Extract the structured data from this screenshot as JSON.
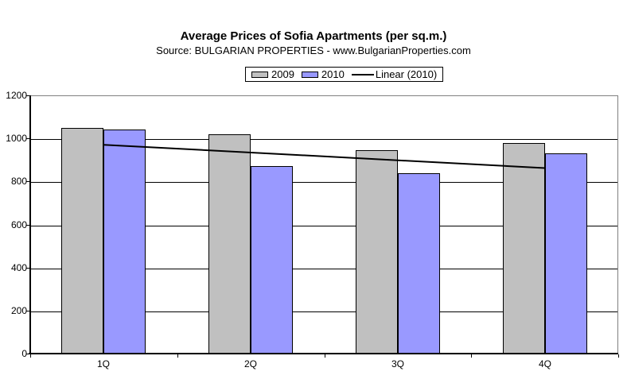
{
  "title": "Average Prices of Sofia Apartments (per sq.m.)",
  "subtitle": "Source: BULGARIAN PROPERTIES - www.BulgarianProperties.com",
  "legend": {
    "items": [
      {
        "label": "2009",
        "swatch_color": "#C0C0C0",
        "kind": "box"
      },
      {
        "label": "2010",
        "swatch_color": "#9999FF",
        "kind": "box"
      },
      {
        "label": "Linear (2010)",
        "swatch_color": "#000000",
        "kind": "line"
      }
    ]
  },
  "colors": {
    "series_2009": "#C0C0C0",
    "series_2010": "#9999FF",
    "trendline": "#000000",
    "gridline": "#000000",
    "plot_border": "#808080",
    "axis": "#000000",
    "background": "#FFFFFF"
  },
  "chart_data": {
    "type": "bar",
    "title": "Average Prices of Sofia Apartments (per sq.m.)",
    "subtitle": "Source: BULGARIAN PROPERTIES - www.BulgarianProperties.com",
    "categories": [
      "1Q",
      "2Q",
      "3Q",
      "4Q"
    ],
    "series": [
      {
        "name": "2009",
        "color": "#C0C0C0",
        "values": [
          1050,
          1020,
          945,
          980
        ]
      },
      {
        "name": "2010",
        "color": "#9999FF",
        "values": [
          1040,
          870,
          840,
          930
        ]
      }
    ],
    "trendline": {
      "name": "Linear (2010)",
      "of_series": "2010",
      "color": "#000000",
      "start_value": 974,
      "end_value": 866
    },
    "xlabel": "",
    "ylabel": "",
    "ylim": [
      0,
      1200
    ],
    "y_ticks": [
      0,
      200,
      400,
      600,
      800,
      1000,
      1200
    ],
    "grid": "horizontal",
    "legend_position": "top-center"
  }
}
